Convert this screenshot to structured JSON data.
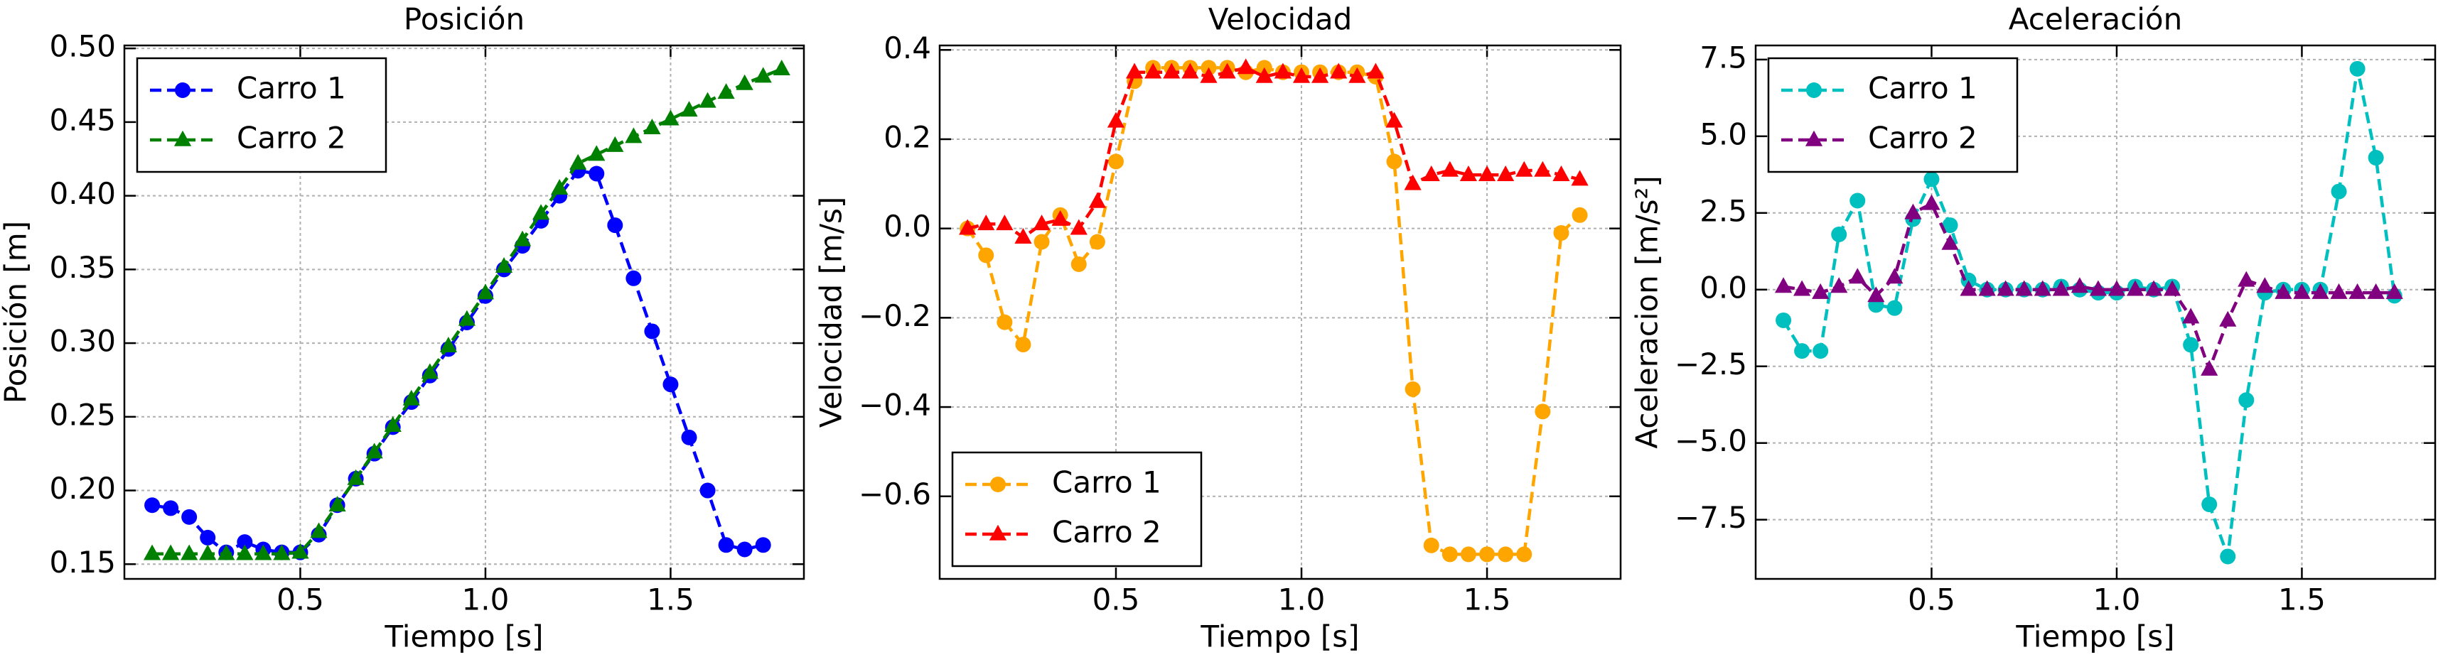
{
  "chart_data": [
    {
      "type": "line",
      "title": "Posición",
      "xlabel": "Tiempo [s]",
      "ylabel": "Posición [m]",
      "x": [
        0.1,
        0.15,
        0.2,
        0.25,
        0.3,
        0.35,
        0.4,
        0.45,
        0.5,
        0.55,
        0.6,
        0.65,
        0.7,
        0.75,
        0.8,
        0.85,
        0.9,
        0.95,
        1.0,
        1.05,
        1.1,
        1.15,
        1.2,
        1.25,
        1.3,
        1.35,
        1.4,
        1.45,
        1.5,
        1.55,
        1.6,
        1.65,
        1.7,
        1.75,
        1.8
      ],
      "series": [
        {
          "name": "Carro 1",
          "color": "#0000ff",
          "marker": "circle",
          "values": [
            0.19,
            0.188,
            0.182,
            0.168,
            0.158,
            0.165,
            0.16,
            0.158,
            0.158,
            0.17,
            0.19,
            0.208,
            0.225,
            0.243,
            0.26,
            0.278,
            0.296,
            0.314,
            0.332,
            0.35,
            0.366,
            0.383,
            0.4,
            0.417,
            0.415,
            0.38,
            0.344,
            0.308,
            0.272,
            0.236,
            0.2,
            0.163,
            0.16,
            0.163,
            null
          ]
        },
        {
          "name": "Carro 2",
          "color": "#008000",
          "marker": "triangle",
          "values": [
            0.157,
            0.157,
            0.157,
            0.157,
            0.157,
            0.157,
            0.157,
            0.157,
            0.158,
            0.172,
            0.19,
            0.208,
            0.226,
            0.244,
            0.262,
            0.28,
            0.298,
            0.316,
            0.334,
            0.352,
            0.37,
            0.388,
            0.405,
            0.422,
            0.428,
            0.434,
            0.44,
            0.446,
            0.452,
            0.458,
            0.464,
            0.47,
            0.476,
            0.481,
            0.486
          ]
        }
      ],
      "xlim": [
        0.025,
        1.86
      ],
      "ylim": [
        0.14,
        0.502
      ],
      "xticks": [
        {
          "value": 0.5,
          "label": "0.5"
        },
        {
          "value": 1.0,
          "label": "1.0"
        },
        {
          "value": 1.5,
          "label": "1.5"
        }
      ],
      "yticks": [
        {
          "value": 0.15,
          "label": "0.15"
        },
        {
          "value": 0.2,
          "label": "0.20"
        },
        {
          "value": 0.25,
          "label": "0.25"
        },
        {
          "value": 0.3,
          "label": "0.30"
        },
        {
          "value": 0.35,
          "label": "0.35"
        },
        {
          "value": 0.4,
          "label": "0.40"
        },
        {
          "value": 0.45,
          "label": "0.45"
        },
        {
          "value": 0.5,
          "label": "0.50"
        }
      ],
      "grid": true,
      "legend": "upper left",
      "linestyle": "dashed"
    },
    {
      "type": "line",
      "title": "Velocidad",
      "xlabel": "Tiempo [s]",
      "ylabel": "Velocidad [m/s]",
      "x": [
        0.1,
        0.15,
        0.2,
        0.25,
        0.3,
        0.35,
        0.4,
        0.45,
        0.5,
        0.55,
        0.6,
        0.65,
        0.7,
        0.75,
        0.8,
        0.85,
        0.9,
        0.95,
        1.0,
        1.05,
        1.1,
        1.15,
        1.2,
        1.25,
        1.3,
        1.35,
        1.4,
        1.45,
        1.5,
        1.55,
        1.6,
        1.65,
        1.7,
        1.75,
        1.8
      ],
      "series": [
        {
          "name": "Carro 1",
          "color": "#ffa500",
          "marker": "circle",
          "values": [
            0.0,
            -0.06,
            -0.21,
            -0.26,
            -0.03,
            0.03,
            -0.08,
            -0.03,
            0.15,
            0.33,
            0.36,
            0.36,
            0.36,
            0.36,
            0.36,
            0.35,
            0.36,
            0.35,
            0.35,
            0.35,
            0.35,
            0.35,
            0.34,
            0.15,
            -0.36,
            -0.71,
            -0.73,
            -0.73,
            -0.73,
            -0.73,
            -0.73,
            -0.41,
            -0.01,
            0.03,
            null
          ]
        },
        {
          "name": "Carro 2",
          "color": "#ff0000",
          "marker": "triangle",
          "values": [
            0.0,
            0.01,
            0.01,
            -0.02,
            0.01,
            0.02,
            0.0,
            0.06,
            0.24,
            0.35,
            0.35,
            0.35,
            0.35,
            0.34,
            0.35,
            0.36,
            0.34,
            0.35,
            0.34,
            0.34,
            0.35,
            0.34,
            0.35,
            0.24,
            0.1,
            0.12,
            0.13,
            0.12,
            0.12,
            0.12,
            0.13,
            0.13,
            0.12,
            0.11,
            null
          ]
        }
      ],
      "xlim": [
        0.025,
        1.86
      ],
      "ylim": [
        -0.785,
        0.41
      ],
      "xticks": [
        {
          "value": 0.5,
          "label": "0.5"
        },
        {
          "value": 1.0,
          "label": "1.0"
        },
        {
          "value": 1.5,
          "label": "1.5"
        }
      ],
      "yticks": [
        {
          "value": -0.6,
          "label": "−0.6"
        },
        {
          "value": -0.4,
          "label": "−0.4"
        },
        {
          "value": -0.2,
          "label": "−0.2"
        },
        {
          "value": 0.0,
          "label": "0.0"
        },
        {
          "value": 0.2,
          "label": "0.2"
        },
        {
          "value": 0.4,
          "label": "0.4"
        }
      ],
      "grid": true,
      "legend": "lower left",
      "linestyle": "dashed"
    },
    {
      "type": "line",
      "title": "Aceleración",
      "xlabel": "Tiempo [s]",
      "ylabel": "Aceleracion [m/s²]",
      "x": [
        0.1,
        0.15,
        0.2,
        0.25,
        0.3,
        0.35,
        0.4,
        0.45,
        0.5,
        0.55,
        0.6,
        0.65,
        0.7,
        0.75,
        0.8,
        0.85,
        0.9,
        0.95,
        1.0,
        1.05,
        1.1,
        1.15,
        1.2,
        1.25,
        1.3,
        1.35,
        1.4,
        1.45,
        1.5,
        1.55,
        1.6,
        1.65,
        1.7,
        1.75,
        1.8
      ],
      "series": [
        {
          "name": "Carro 1",
          "color": "#00bfbf",
          "marker": "circle",
          "values": [
            -1.0,
            -2.0,
            -2.0,
            1.8,
            2.9,
            -0.5,
            -0.6,
            2.3,
            3.6,
            2.1,
            0.3,
            0.0,
            0.0,
            0.0,
            0.0,
            0.1,
            0.0,
            -0.1,
            -0.1,
            0.1,
            0.0,
            0.1,
            -1.8,
            -7.0,
            -8.7,
            -3.6,
            -0.1,
            0.0,
            0.0,
            0.0,
            3.2,
            7.2,
            4.3,
            -0.2,
            null
          ]
        },
        {
          "name": "Carro 2",
          "color": "#800080",
          "marker": "triangle",
          "values": [
            0.1,
            0.0,
            -0.1,
            0.1,
            0.4,
            -0.2,
            0.4,
            2.5,
            2.8,
            1.5,
            0.0,
            0.0,
            0.0,
            0.0,
            0.0,
            0.0,
            0.1,
            0.0,
            0.0,
            0.0,
            0.0,
            0.0,
            -0.9,
            -2.6,
            -1.0,
            0.3,
            0.1,
            -0.1,
            -0.1,
            -0.1,
            -0.1,
            -0.1,
            -0.1,
            -0.1,
            null
          ]
        }
      ],
      "xlim": [
        0.025,
        1.86
      ],
      "ylim": [
        -9.43,
        7.96
      ],
      "xticks": [
        {
          "value": 0.5,
          "label": "0.5"
        },
        {
          "value": 1.0,
          "label": "1.0"
        },
        {
          "value": 1.5,
          "label": "1.5"
        }
      ],
      "yticks": [
        {
          "value": -7.5,
          "label": "−7.5"
        },
        {
          "value": -5.0,
          "label": "−5.0"
        },
        {
          "value": -2.5,
          "label": "−2.5"
        },
        {
          "value": 0.0,
          "label": "0.0"
        },
        {
          "value": 2.5,
          "label": "2.5"
        },
        {
          "value": 5.0,
          "label": "5.0"
        },
        {
          "value": 7.5,
          "label": "7.5"
        }
      ],
      "grid": true,
      "legend": "upper left",
      "linestyle": "dashed"
    }
  ]
}
